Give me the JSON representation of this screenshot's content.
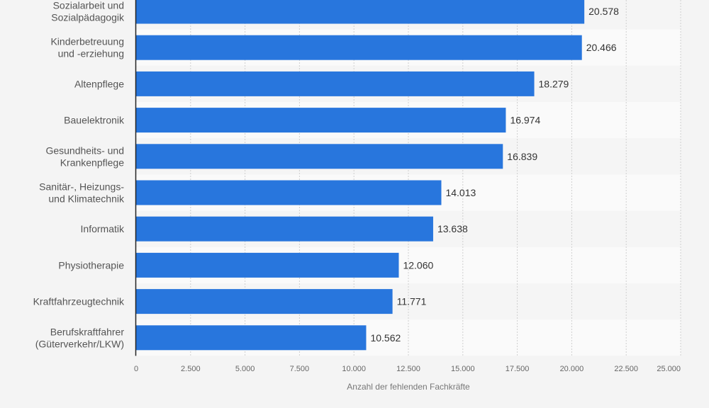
{
  "chart_data": {
    "type": "bar",
    "orientation": "horizontal",
    "title": "",
    "xlabel": "Anzahl der fehlenden Fachkräfte",
    "ylabel": "",
    "xlim": [
      0,
      25000
    ],
    "grid": true,
    "legend": "none",
    "bar_color": "#2876dd",
    "categories": [
      [
        "Sozialarbeit und",
        "Sozialpädagogik"
      ],
      [
        "Kinderbetreuung",
        "und -erziehung"
      ],
      [
        "Altenpflege"
      ],
      [
        "Bauelektronik"
      ],
      [
        "Gesundheits- und",
        "Krankenpflege"
      ],
      [
        "Sanitär-, Heizungs-",
        "und Klimatechnik"
      ],
      [
        "Informatik"
      ],
      [
        "Physiotherapie"
      ],
      [
        "Kraftfahrzeugtechnik"
      ],
      [
        "Berufskraftfahrer",
        "(Güterverkehr/LKW)"
      ]
    ],
    "values": [
      20578,
      20466,
      18279,
      16974,
      16839,
      14013,
      13638,
      12060,
      11771,
      10562
    ],
    "value_labels": [
      "20.578",
      "20.466",
      "18.279",
      "16.974",
      "16.839",
      "14.013",
      "13.638",
      "12.060",
      "11.771",
      "10.562"
    ],
    "x_ticks": [
      0,
      2500,
      5000,
      7500,
      10000,
      12500,
      15000,
      17500,
      20000,
      22500,
      25000
    ],
    "x_tick_labels": [
      "0",
      "2.500",
      "5.000",
      "7.500",
      "10.000",
      "12.500",
      "15.000",
      "17.500",
      "20.000",
      "22.500",
      "25.000"
    ]
  }
}
